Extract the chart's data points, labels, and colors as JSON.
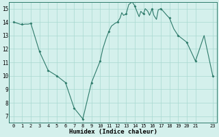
{
  "x": [
    0,
    1,
    1.3,
    1.7,
    2,
    3,
    4,
    5,
    6,
    7,
    7.5,
    8,
    9,
    10,
    10.3,
    10.7,
    11,
    11.3,
    11.7,
    12,
    12.3,
    12.5,
    12.7,
    13,
    13.3,
    13.7,
    14,
    14.3,
    14.5,
    14.7,
    15,
    15.2,
    15.5,
    15.7,
    16,
    16.2,
    16.5,
    16.7,
    17,
    17.3,
    17.7,
    18,
    18.5,
    19,
    20,
    21,
    22,
    23
  ],
  "y": [
    14.0,
    13.8,
    13.85,
    13.85,
    13.9,
    11.8,
    10.4,
    10.0,
    9.5,
    7.6,
    7.2,
    6.8,
    9.5,
    11.1,
    12.0,
    12.8,
    13.3,
    13.7,
    13.9,
    14.0,
    14.3,
    14.7,
    14.5,
    14.6,
    15.3,
    15.5,
    15.2,
    14.7,
    14.4,
    14.8,
    14.6,
    15.0,
    14.8,
    14.5,
    15.0,
    14.5,
    14.2,
    14.9,
    15.0,
    14.8,
    14.5,
    14.3,
    13.5,
    13.0,
    12.5,
    11.1,
    13.0,
    10.0
  ],
  "marker_x": [
    0,
    1,
    2,
    3,
    4,
    5,
    6,
    7,
    8,
    9,
    10,
    11,
    12,
    13,
    14,
    15,
    16,
    17,
    18,
    19,
    20,
    21,
    23
  ],
  "marker_y": [
    14.0,
    13.85,
    13.9,
    11.8,
    10.4,
    10.0,
    9.5,
    7.6,
    6.8,
    9.5,
    11.1,
    13.3,
    14.0,
    14.6,
    15.2,
    14.6,
    15.0,
    15.0,
    14.3,
    13.0,
    12.5,
    11.1,
    10.0
  ],
  "line_color": "#2d7a6a",
  "marker_color": "#2d7a6a",
  "bg_color": "#d4f0ec",
  "grid_color": "#a8d8d0",
  "xlabel": "Humidex (Indice chaleur)",
  "xlim": [
    -0.5,
    23.5
  ],
  "ylim": [
    6.5,
    15.5
  ],
  "yticks": [
    7,
    8,
    9,
    10,
    11,
    12,
    13,
    14,
    15
  ],
  "xticks": [
    0,
    1,
    2,
    3,
    4,
    5,
    6,
    7,
    8,
    9,
    10,
    11,
    12,
    13,
    14,
    15,
    16,
    17,
    18,
    19,
    20,
    21,
    23
  ],
  "xtick_labels": [
    "0",
    "1",
    "2",
    "3",
    "4",
    "5",
    "6",
    "7",
    "8",
    "9",
    "10",
    "11",
    "12",
    "13",
    "14",
    "15",
    "16",
    "17",
    "18",
    "19",
    "20",
    "21",
    "23"
  ]
}
